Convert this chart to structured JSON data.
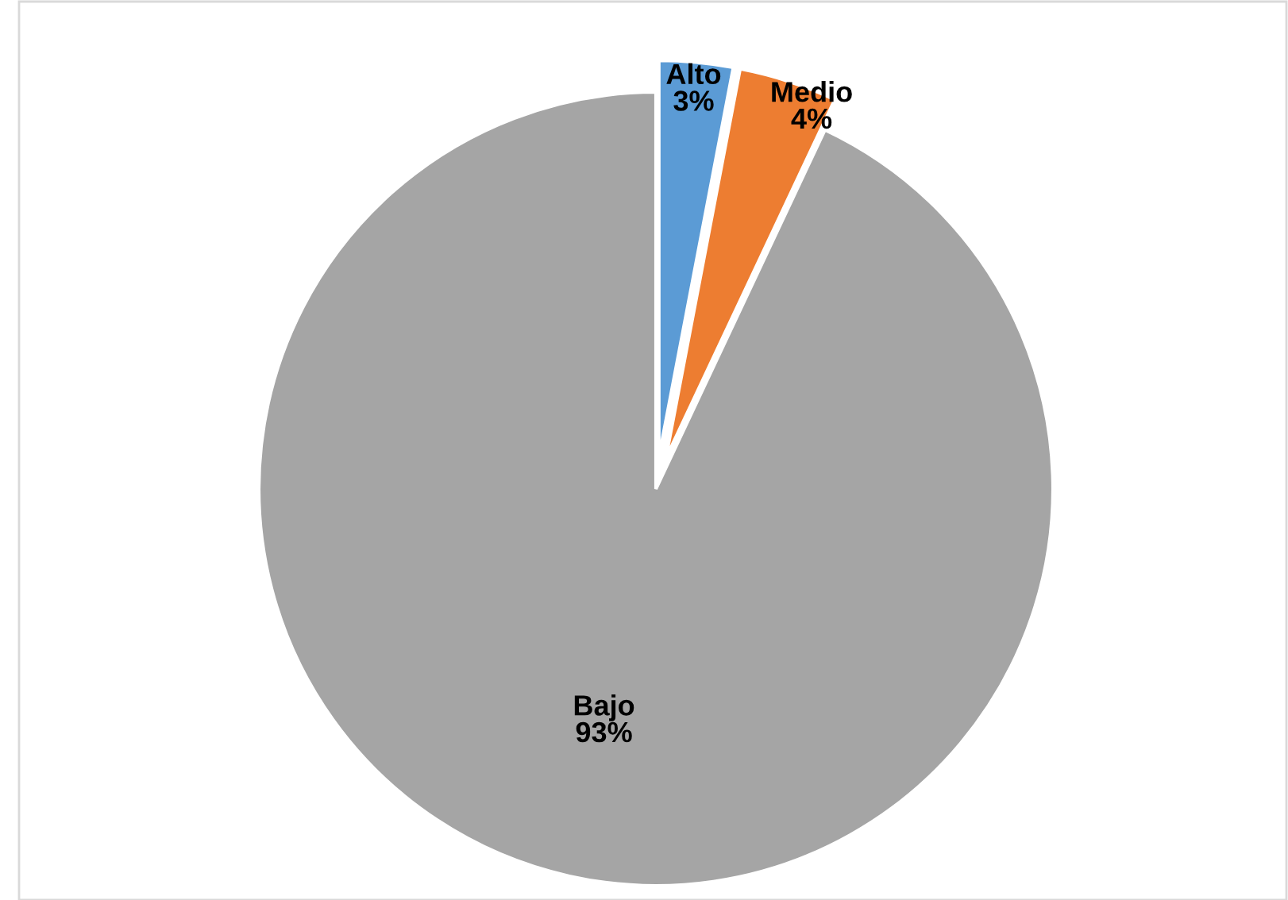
{
  "chart_data": {
    "type": "pie",
    "categories": [
      "Alto",
      "Medio",
      "Bajo"
    ],
    "values": [
      3,
      4,
      93
    ],
    "colors": [
      "#5b9bd5",
      "#ed7d31",
      "#a5a5a5"
    ],
    "value_labels": [
      "3%",
      "4%",
      "93%"
    ],
    "legend": false
  }
}
